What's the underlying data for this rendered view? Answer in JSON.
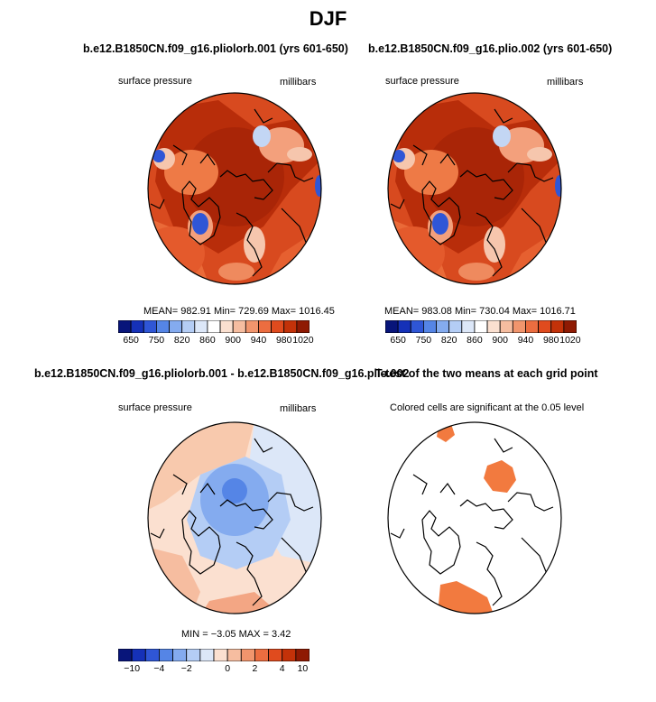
{
  "figure": {
    "title": "DJF"
  },
  "panels": [
    {
      "id": "p1",
      "title": "b.e12.B1850CN.f09_g16.pliolorb.001 (yrs 601-650)",
      "left_label": "surface pressure",
      "right_label": "millibars",
      "stats_text": "MEAN= 982.91   Min= 729.69   Max= 1016.45"
    },
    {
      "id": "p2",
      "title": "b.e12.B1850CN.f09_g16.plio.002 (yrs 601-650)",
      "left_label": "surface pressure",
      "right_label": "millibars",
      "stats_text": "MEAN= 983.08   Min= 730.04   Max= 1016.71"
    },
    {
      "id": "p3",
      "title": "b.e12.B1850CN.f09_g16.pliolorb.001 - b.e12.B1850CN.f09_g16.plio.002",
      "left_label": "surface pressure",
      "right_label": "millibars",
      "stats_text": "MIN =   −3.05  MAX =    3.42"
    },
    {
      "id": "p4",
      "title": "T-test of the two means at each grid point",
      "left_label": "Colored cells are significant at the 0.05 level",
      "right_label": "",
      "stats_text": ""
    }
  ],
  "chart_data": [
    {
      "type": "heatmap",
      "projection": "north-polar-stereographic",
      "title": "b.e12.B1850CN.f09_g16.pliolorb.001 (yrs 601-650)",
      "variable": "surface pressure",
      "units": "millibars",
      "mean": 982.91,
      "min": 729.69,
      "max": 1016.45,
      "colorbar": {
        "levels": [
          650,
          700,
          750,
          780,
          820,
          840,
          860,
          880,
          900,
          920,
          940,
          960,
          980,
          1000,
          1020
        ],
        "tick_labels": [
          "650",
          "750",
          "820",
          "860",
          "900",
          "940",
          "980",
          "1020"
        ],
        "colors": [
          "#08157a",
          "#1531b8",
          "#2f56d6",
          "#5585e6",
          "#84abef",
          "#b4cdf5",
          "#dce7f8",
          "#ffffff",
          "#fbe0d0",
          "#f6bda0",
          "#f1956d",
          "#ec6d40",
          "#e04b1e",
          "#c33209",
          "#8f1a03"
        ]
      }
    },
    {
      "type": "heatmap",
      "projection": "north-polar-stereographic",
      "title": "b.e12.B1850CN.f09_g16.plio.002 (yrs 601-650)",
      "variable": "surface pressure",
      "units": "millibars",
      "mean": 983.08,
      "min": 730.04,
      "max": 1016.71,
      "colorbar": {
        "levels": [
          650,
          700,
          750,
          780,
          820,
          840,
          860,
          880,
          900,
          920,
          940,
          960,
          980,
          1000,
          1020
        ],
        "tick_labels": [
          "650",
          "750",
          "820",
          "860",
          "900",
          "940",
          "980",
          "1020"
        ],
        "colors": [
          "#08157a",
          "#1531b8",
          "#2f56d6",
          "#5585e6",
          "#84abef",
          "#b4cdf5",
          "#dce7f8",
          "#ffffff",
          "#fbe0d0",
          "#f6bda0",
          "#f1956d",
          "#ec6d40",
          "#e04b1e",
          "#c33209",
          "#8f1a03"
        ]
      }
    },
    {
      "type": "heatmap",
      "projection": "north-polar-stereographic",
      "title": "b.e12.B1850CN.f09_g16.pliolorb.001 - b.e12.B1850CN.f09_g16.plio.002",
      "variable": "surface pressure",
      "units": "millibars",
      "min": -3.05,
      "max": 3.42,
      "colorbar": {
        "levels": [
          -10,
          -8,
          -4,
          -3,
          -2,
          -1,
          0,
          1,
          2,
          3,
          4,
          8,
          10
        ],
        "tick_labels": [
          "−10",
          "−4",
          "−2",
          "0",
          "2",
          "4",
          "10"
        ],
        "colors": [
          "#08157a",
          "#1531b8",
          "#2f56d6",
          "#5585e6",
          "#84abef",
          "#b4cdf5",
          "#dce7f8",
          "#fbe0d0",
          "#f6bda0",
          "#f1956d",
          "#ec6d40",
          "#e04b1e",
          "#c33209",
          "#8f1a03"
        ]
      }
    },
    {
      "type": "heatmap",
      "projection": "north-polar-stereographic",
      "title": "T-test of the two means at each grid point",
      "note": "Colored cells are significant at the 0.05 level",
      "significance_level": 0.05,
      "significant_color": "#f27a3f"
    }
  ],
  "colors": {
    "background": "#ffffff",
    "land_outline": "#000000",
    "pressure_fill_high": "#b82d0a",
    "pressure_fill_mid": "#d84a1f",
    "pressure_fill_light": "#f09070",
    "pressure_fill_low": "#2f56d6",
    "diff_warm": "#f8c9ad",
    "diff_cool": "#b9d2f4",
    "diff_cooler": "#7aa3ea"
  }
}
